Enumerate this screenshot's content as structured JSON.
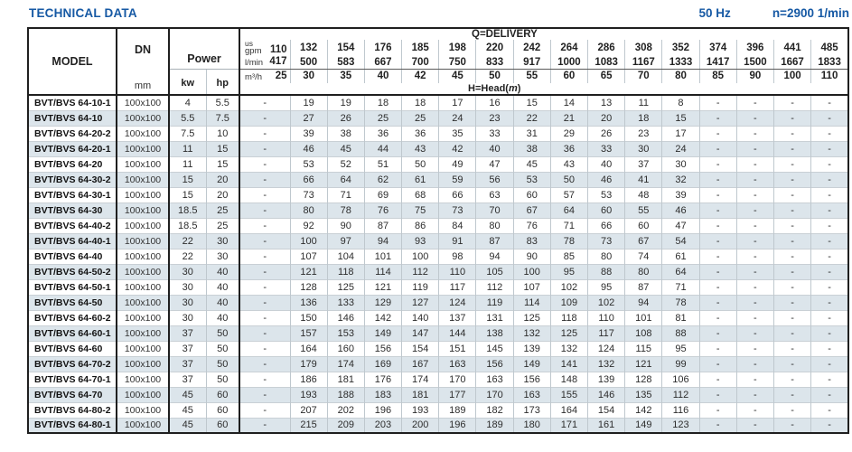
{
  "header": {
    "title": "TECHNICAL DATA",
    "frequency": "50 Hz",
    "speed": "n=2900 1/min"
  },
  "colors": {
    "accent_blue": "#1659a4",
    "row_alt": "#dce5eb",
    "border_dark": "#1f1f1f",
    "grid_light": "#bfc8ce"
  },
  "table": {
    "model_header": "MODEL",
    "dn_header": "DN",
    "dn_unit": "mm",
    "power_header": "Power",
    "kw_label": "kw",
    "hp_label": "hp",
    "delivery_label": "Q=DELIVERY",
    "head_label_prefix": "H=Head(",
    "head_label_m": "m",
    "head_label_suffix": ")",
    "flow_units": {
      "gpm_top": "us",
      "gpm": "gpm",
      "lmin": "l/min",
      "m3h": "m³/h"
    },
    "flow_gpm": [
      "110",
      "132",
      "154",
      "176",
      "185",
      "198",
      "220",
      "242",
      "264",
      "286",
      "308",
      "352",
      "374",
      "396",
      "441",
      "485"
    ],
    "flow_lmin": [
      "417",
      "500",
      "583",
      "667",
      "700",
      "750",
      "833",
      "917",
      "1000",
      "1083",
      "1167",
      "1333",
      "1417",
      "1500",
      "1667",
      "1833"
    ],
    "flow_m3h": [
      "25",
      "30",
      "35",
      "40",
      "42",
      "45",
      "50",
      "55",
      "60",
      "65",
      "70",
      "80",
      "85",
      "90",
      "100",
      "110"
    ],
    "rows": [
      {
        "model": "BVT/BVS 64-10-1",
        "dn": "100x100",
        "kw": "4",
        "hp": "5.5",
        "head": [
          "-",
          "19",
          "19",
          "18",
          "18",
          "17",
          "16",
          "15",
          "14",
          "13",
          "11",
          "8",
          "-",
          "-",
          "-",
          "-"
        ]
      },
      {
        "model": "BVT/BVS 64-10",
        "dn": "100x100",
        "kw": "5.5",
        "hp": "7.5",
        "head": [
          "-",
          "27",
          "26",
          "25",
          "25",
          "24",
          "23",
          "22",
          "21",
          "20",
          "18",
          "15",
          "-",
          "-",
          "-",
          "-"
        ]
      },
      {
        "model": "BVT/BVS 64-20-2",
        "dn": "100x100",
        "kw": "7.5",
        "hp": "10",
        "head": [
          "-",
          "39",
          "38",
          "36",
          "36",
          "35",
          "33",
          "31",
          "29",
          "26",
          "23",
          "17",
          "-",
          "-",
          "-",
          "-"
        ]
      },
      {
        "model": "BVT/BVS 64-20-1",
        "dn": "100x100",
        "kw": "11",
        "hp": "15",
        "head": [
          "-",
          "46",
          "45",
          "44",
          "43",
          "42",
          "40",
          "38",
          "36",
          "33",
          "30",
          "24",
          "-",
          "-",
          "-",
          "-"
        ]
      },
      {
        "model": "BVT/BVS 64-20",
        "dn": "100x100",
        "kw": "11",
        "hp": "15",
        "head": [
          "-",
          "53",
          "52",
          "51",
          "50",
          "49",
          "47",
          "45",
          "43",
          "40",
          "37",
          "30",
          "-",
          "-",
          "-",
          "-"
        ]
      },
      {
        "model": "BVT/BVS 64-30-2",
        "dn": "100x100",
        "kw": "15",
        "hp": "20",
        "head": [
          "-",
          "66",
          "64",
          "62",
          "61",
          "59",
          "56",
          "53",
          "50",
          "46",
          "41",
          "32",
          "-",
          "-",
          "-",
          "-"
        ]
      },
      {
        "model": "BVT/BVS 64-30-1",
        "dn": "100x100",
        "kw": "15",
        "hp": "20",
        "head": [
          "-",
          "73",
          "71",
          "69",
          "68",
          "66",
          "63",
          "60",
          "57",
          "53",
          "48",
          "39",
          "-",
          "-",
          "-",
          "-"
        ]
      },
      {
        "model": "BVT/BVS 64-30",
        "dn": "100x100",
        "kw": "18.5",
        "hp": "25",
        "head": [
          "-",
          "80",
          "78",
          "76",
          "75",
          "73",
          "70",
          "67",
          "64",
          "60",
          "55",
          "46",
          "-",
          "-",
          "-",
          "-"
        ]
      },
      {
        "model": "BVT/BVS 64-40-2",
        "dn": "100x100",
        "kw": "18.5",
        "hp": "25",
        "head": [
          "-",
          "92",
          "90",
          "87",
          "86",
          "84",
          "80",
          "76",
          "71",
          "66",
          "60",
          "47",
          "-",
          "-",
          "-",
          "-"
        ]
      },
      {
        "model": "BVT/BVS 64-40-1",
        "dn": "100x100",
        "kw": "22",
        "hp": "30",
        "head": [
          "-",
          "100",
          "97",
          "94",
          "93",
          "91",
          "87",
          "83",
          "78",
          "73",
          "67",
          "54",
          "-",
          "-",
          "-",
          "-"
        ]
      },
      {
        "model": "BVT/BVS 64-40",
        "dn": "100x100",
        "kw": "22",
        "hp": "30",
        "head": [
          "-",
          "107",
          "104",
          "101",
          "100",
          "98",
          "94",
          "90",
          "85",
          "80",
          "74",
          "61",
          "-",
          "-",
          "-",
          "-"
        ]
      },
      {
        "model": "BVT/BVS 64-50-2",
        "dn": "100x100",
        "kw": "30",
        "hp": "40",
        "head": [
          "-",
          "121",
          "118",
          "114",
          "112",
          "110",
          "105",
          "100",
          "95",
          "88",
          "80",
          "64",
          "-",
          "-",
          "-",
          "-"
        ]
      },
      {
        "model": "BVT/BVS 64-50-1",
        "dn": "100x100",
        "kw": "30",
        "hp": "40",
        "head": [
          "-",
          "128",
          "125",
          "121",
          "119",
          "117",
          "112",
          "107",
          "102",
          "95",
          "87",
          "71",
          "-",
          "-",
          "-",
          "-"
        ]
      },
      {
        "model": "BVT/BVS 64-50",
        "dn": "100x100",
        "kw": "30",
        "hp": "40",
        "head": [
          "-",
          "136",
          "133",
          "129",
          "127",
          "124",
          "119",
          "114",
          "109",
          "102",
          "94",
          "78",
          "-",
          "-",
          "-",
          "-"
        ]
      },
      {
        "model": "BVT/BVS 64-60-2",
        "dn": "100x100",
        "kw": "30",
        "hp": "40",
        "head": [
          "-",
          "150",
          "146",
          "142",
          "140",
          "137",
          "131",
          "125",
          "118",
          "110",
          "101",
          "81",
          "-",
          "-",
          "-",
          "-"
        ]
      },
      {
        "model": "BVT/BVS 64-60-1",
        "dn": "100x100",
        "kw": "37",
        "hp": "50",
        "head": [
          "-",
          "157",
          "153",
          "149",
          "147",
          "144",
          "138",
          "132",
          "125",
          "117",
          "108",
          "88",
          "-",
          "-",
          "-",
          "-"
        ]
      },
      {
        "model": "BVT/BVS 64-60",
        "dn": "100x100",
        "kw": "37",
        "hp": "50",
        "head": [
          "-",
          "164",
          "160",
          "156",
          "154",
          "151",
          "145",
          "139",
          "132",
          "124",
          "115",
          "95",
          "-",
          "-",
          "-",
          "-"
        ]
      },
      {
        "model": "BVT/BVS 64-70-2",
        "dn": "100x100",
        "kw": "37",
        "hp": "50",
        "head": [
          "-",
          "179",
          "174",
          "169",
          "167",
          "163",
          "156",
          "149",
          "141",
          "132",
          "121",
          "99",
          "-",
          "-",
          "-",
          "-"
        ]
      },
      {
        "model": "BVT/BVS 64-70-1",
        "dn": "100x100",
        "kw": "37",
        "hp": "50",
        "head": [
          "-",
          "186",
          "181",
          "176",
          "174",
          "170",
          "163",
          "156",
          "148",
          "139",
          "128",
          "106",
          "-",
          "-",
          "-",
          "-"
        ]
      },
      {
        "model": "BVT/BVS 64-70",
        "dn": "100x100",
        "kw": "45",
        "hp": "60",
        "head": [
          "-",
          "193",
          "188",
          "183",
          "181",
          "177",
          "170",
          "163",
          "155",
          "146",
          "135",
          "112",
          "-",
          "-",
          "-",
          "-"
        ]
      },
      {
        "model": "BVT/BVS 64-80-2",
        "dn": "100x100",
        "kw": "45",
        "hp": "60",
        "head": [
          "-",
          "207",
          "202",
          "196",
          "193",
          "189",
          "182",
          "173",
          "164",
          "154",
          "142",
          "116",
          "-",
          "-",
          "-",
          "-"
        ]
      },
      {
        "model": "BVT/BVS 64-80-1",
        "dn": "100x100",
        "kw": "45",
        "hp": "60",
        "head": [
          "-",
          "215",
          "209",
          "203",
          "200",
          "196",
          "189",
          "180",
          "171",
          "161",
          "149",
          "123",
          "-",
          "-",
          "-",
          "-"
        ]
      }
    ]
  }
}
